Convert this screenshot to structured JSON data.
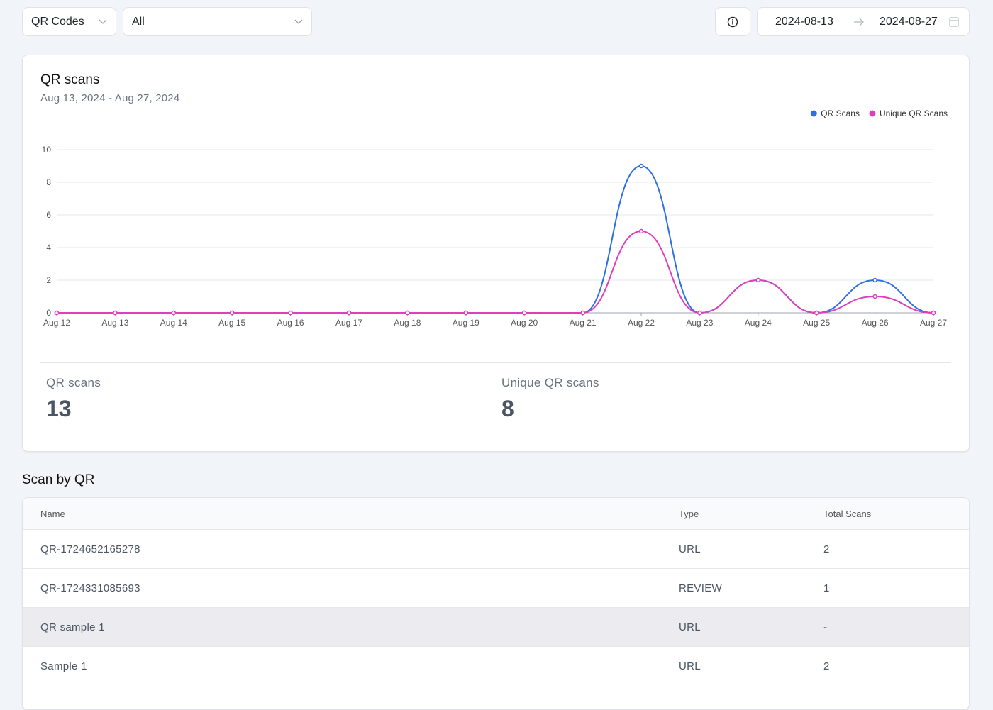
{
  "filters": {
    "source": "QR Codes",
    "scope": "All"
  },
  "date_range": {
    "start": "2024-08-13",
    "end": "2024-08-27"
  },
  "card": {
    "title": "QR scans",
    "subtitle": "Aug 13, 2024 - Aug 27, 2024"
  },
  "chart_data": {
    "type": "line",
    "categories": [
      "Aug 12",
      "Aug 13",
      "Aug 14",
      "Aug 15",
      "Aug 16",
      "Aug 17",
      "Aug 18",
      "Aug 19",
      "Aug 20",
      "Aug 21",
      "Aug 22",
      "Aug 23",
      "Aug 24",
      "Aug 25",
      "Aug 26",
      "Aug 27"
    ],
    "series": [
      {
        "name": "QR Scans",
        "color": "#2f6fe4",
        "values": [
          0,
          0,
          0,
          0,
          0,
          0,
          0,
          0,
          0,
          0,
          9,
          0,
          2,
          0,
          2,
          0
        ]
      },
      {
        "name": "Unique QR Scans",
        "color": "#de3fbd",
        "values": [
          0,
          0,
          0,
          0,
          0,
          0,
          0,
          0,
          0,
          0,
          5,
          0,
          2,
          0,
          1,
          0
        ]
      }
    ],
    "ylim": [
      0,
      10
    ],
    "yticks": [
      0,
      2,
      4,
      6,
      8,
      10
    ],
    "grid": true,
    "legend": "top-right"
  },
  "stats": [
    {
      "label": "QR scans",
      "value": 13
    },
    {
      "label": "Unique QR scans",
      "value": 8
    }
  ],
  "table": {
    "title": "Scan by QR",
    "columns": [
      "Name",
      "Type",
      "Total Scans"
    ],
    "rows": [
      [
        "QR-1724652165278",
        "URL",
        2
      ],
      [
        "QR-1724331085693",
        "REVIEW",
        1
      ],
      [
        "QR sample 1",
        "URL",
        "-"
      ],
      [
        "Sample 1",
        "URL",
        2
      ]
    ]
  }
}
